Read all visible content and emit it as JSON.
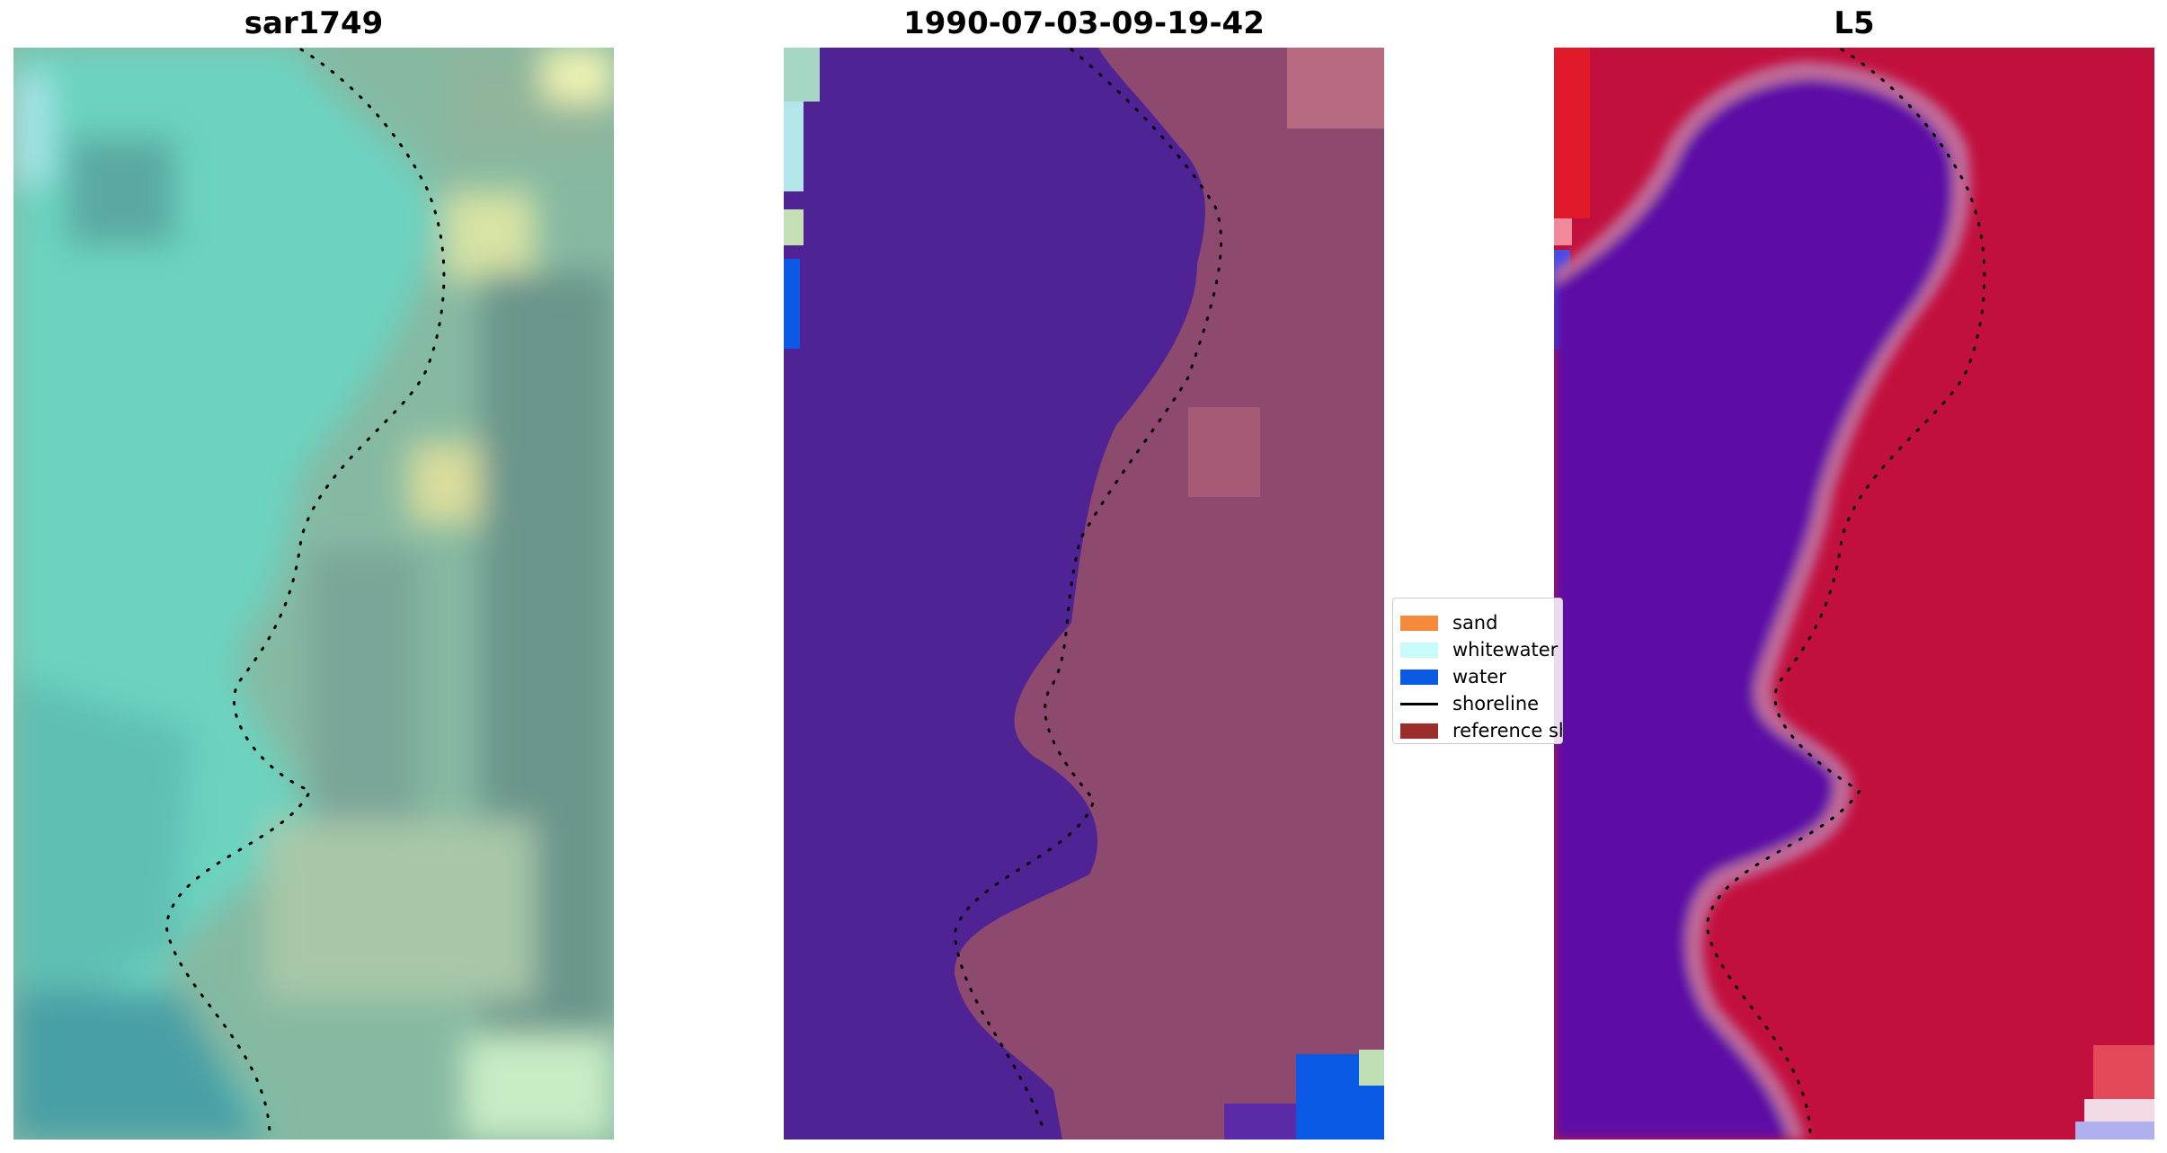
{
  "panels": [
    {
      "title": "sar1749"
    },
    {
      "title": "1990-07-03-09-19-42"
    },
    {
      "title": "L5"
    }
  ],
  "legend": [
    {
      "label": "sand",
      "kind": "patch",
      "color": "#f58a3c"
    },
    {
      "label": "whitewater",
      "kind": "patch",
      "color": "#c8fafa"
    },
    {
      "label": "water",
      "kind": "patch",
      "color": "#0a5ae6"
    },
    {
      "label": "shoreline",
      "kind": "line",
      "color": "#000000"
    },
    {
      "label": "reference shoreline",
      "kind": "patch",
      "color": "#9b2d2d"
    }
  ],
  "colors": {
    "rgb_water": "#6fd6c4",
    "rgb_land": "#8ab49c",
    "classified_water": "#4f2394",
    "classified_land": "#8e4a6e",
    "index_water": "#5d0aa5",
    "index_land": "#c2103e"
  }
}
